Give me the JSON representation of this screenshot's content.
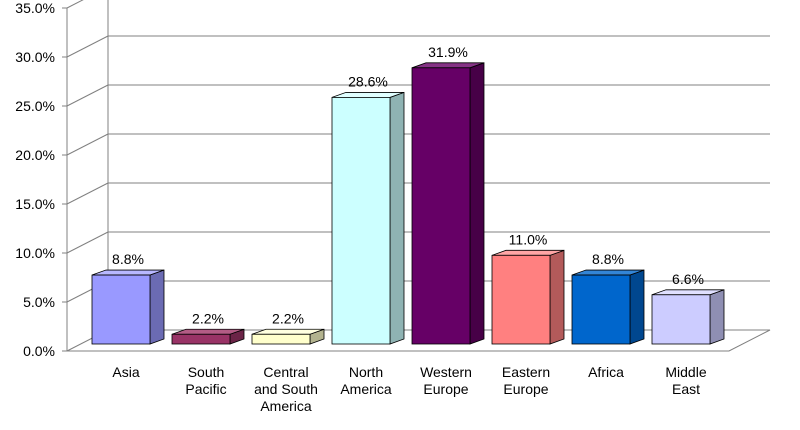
{
  "chart_data": {
    "type": "bar",
    "categories": [
      [
        "Asia"
      ],
      [
        "South",
        "Pacific"
      ],
      [
        "Central",
        "and South",
        "America"
      ],
      [
        "North",
        "America"
      ],
      [
        "Western",
        "Europe"
      ],
      [
        "Eastern",
        "Europe"
      ],
      [
        "Africa"
      ],
      [
        "Middle",
        "East"
      ]
    ],
    "values": [
      8.8,
      2.2,
      2.2,
      28.6,
      31.9,
      11.0,
      8.8,
      6.6
    ],
    "data_labels": [
      "8.8%",
      "2.2%",
      "2.2%",
      "28.6%",
      "31.9%",
      "11.0%",
      "8.8%",
      "6.6%"
    ],
    "y_ticks": [
      "0.0%",
      "5.0%",
      "10.0%",
      "15.0%",
      "20.0%",
      "25.0%",
      "30.0%",
      "35.0%"
    ],
    "ylim": [
      0,
      35
    ],
    "grid": true,
    "legend": "none",
    "colors": [
      "#9999ff",
      "#993366",
      "#ffffcc",
      "#ccffff",
      "#660066",
      "#ff8080",
      "#0066cc",
      "#ccccff"
    ],
    "side_colors": [
      "#6b6bb3",
      "#6b2447",
      "#b3b38f",
      "#8fb3b3",
      "#470047",
      "#b35a5a",
      "#00478f",
      "#8f8fb3"
    ],
    "top_colors": [
      "#b8b8ff",
      "#b35c85",
      "#ffffe0",
      "#e0ffff",
      "#853385",
      "#ffa6a6",
      "#3385d6",
      "#e0e0ff"
    ]
  }
}
